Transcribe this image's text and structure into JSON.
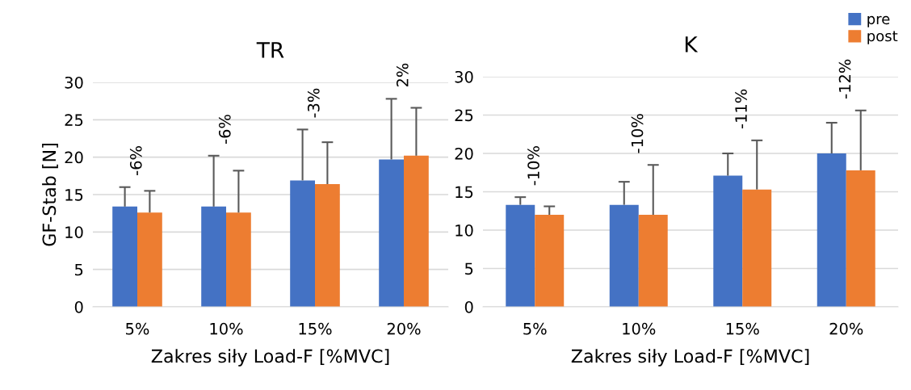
{
  "chart_data": [
    {
      "type": "bar",
      "title": "TR",
      "xlabel": "Zakres siły Load-F [%MVC]",
      "ylabel": "GF-Stab [N]",
      "categories": [
        "5%",
        "10%",
        "15%",
        "20%"
      ],
      "series": [
        {
          "name": "pre",
          "color": "#4472c4",
          "values": [
            13.4,
            13.4,
            16.9,
            19.7
          ],
          "errors": [
            [
              13.4,
              16.0
            ],
            [
              13.4,
              20.2
            ],
            [
              16.9,
              23.7
            ],
            [
              19.7,
              27.8
            ]
          ]
        },
        {
          "name": "post",
          "color": "#ed7d31",
          "values": [
            12.6,
            12.6,
            16.4,
            20.2
          ],
          "errors": [
            [
              12.6,
              15.5
            ],
            [
              12.6,
              18.2
            ],
            [
              16.4,
              22.0
            ],
            [
              20.2,
              26.6
            ]
          ]
        }
      ],
      "annotations": [
        "-6%",
        "-6%",
        "-3%",
        "2%"
      ],
      "ylim": [
        0,
        30
      ],
      "yticks": [
        0,
        5,
        10,
        15,
        20,
        25,
        30
      ],
      "grid": "y",
      "legend": "top right"
    },
    {
      "type": "bar",
      "title": "K",
      "xlabel": "Zakres siły Load-F [%MVC]",
      "categories": [
        "5%",
        "10%",
        "15%",
        "20%"
      ],
      "series": [
        {
          "name": "pre",
          "color": "#4472c4",
          "values": [
            13.3,
            13.3,
            17.1,
            20.0
          ],
          "errors": [
            [
              13.3,
              14.3
            ],
            [
              13.3,
              16.3
            ],
            [
              17.1,
              20.0
            ],
            [
              20.0,
              24.0
            ]
          ]
        },
        {
          "name": "post",
          "color": "#ed7d31",
          "values": [
            12.0,
            12.0,
            15.3,
            17.8
          ],
          "errors": [
            [
              12.0,
              13.1
            ],
            [
              12.0,
              18.5
            ],
            [
              15.3,
              21.7
            ],
            [
              17.8,
              25.6
            ]
          ]
        }
      ],
      "annotations": [
        "-10%",
        "-10%",
        "-11%",
        "-12%"
      ],
      "ylim": [
        0,
        30
      ],
      "yticks": [
        0,
        5,
        10,
        15,
        20,
        25,
        30
      ],
      "grid": "y",
      "legend": "top right"
    }
  ]
}
